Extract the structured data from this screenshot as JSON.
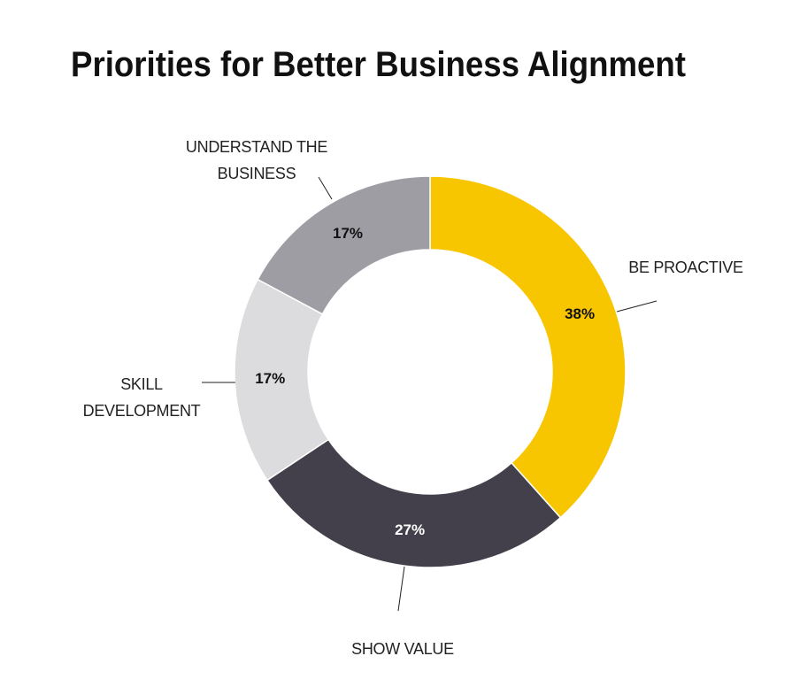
{
  "chart_data": {
    "type": "donut",
    "title": "Priorities for Better Business Alignment",
    "categories": [
      "BE PROACTIVE",
      "SHOW VALUE",
      "SKILL DEVELOPMENT",
      "UNDERSTAND THE BUSINESS"
    ],
    "values": [
      38,
      27,
      17,
      17
    ],
    "value_labels": [
      "38%",
      "27%",
      "17%",
      "17%"
    ],
    "colors": [
      "#f8c600",
      "#43404b",
      "#dcdcde",
      "#9e9da4"
    ]
  }
}
